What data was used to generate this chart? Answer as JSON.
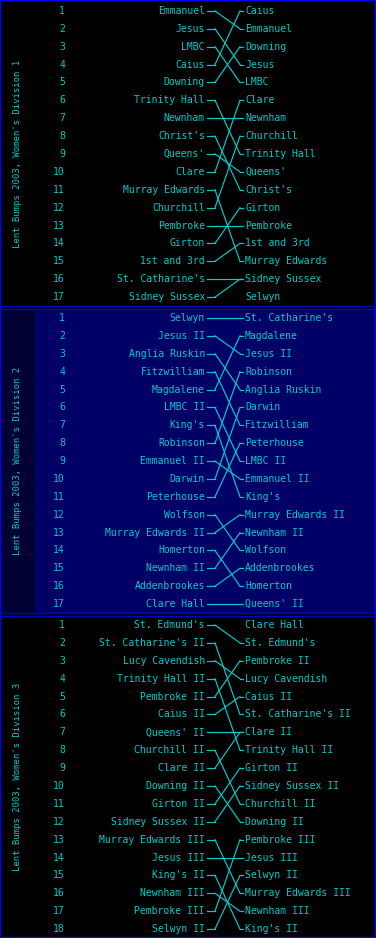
{
  "bg_color": "#000000",
  "line_color": "#00cccc",
  "text_color": "#00cccc",
  "font_size": 7.0,
  "sidebar_text_size": 6.5,
  "div_bgs": [
    "#000000",
    "#000066",
    "#000000"
  ],
  "div_sidebar_bgs": [
    "#000000",
    "#000066",
    "#000000"
  ],
  "divisions": [
    {
      "name": "Women's Division 1",
      "left": [
        "Emmanuel",
        "Jesus",
        "LMBC",
        "Caius",
        "Downing",
        "Trinity Hall",
        "Newnham",
        "Christ's",
        "Queens'",
        "Clare",
        "Murray Edwards",
        "Churchill",
        "Pembroke",
        "Girton",
        "1st and 3rd",
        "St. Catharine's",
        "Sidney Sussex"
      ],
      "right": [
        "Caius",
        "Emmanuel",
        "Downing",
        "Jesus",
        "LMBC",
        "Clare",
        "Newnham",
        "Churchill",
        "Trinity Hall",
        "Queens'",
        "Christ's",
        "Girton",
        "Pembroke",
        "1st and 3rd",
        "Murray Edwards",
        "Sidney Sussex",
        "Selwyn"
      ]
    },
    {
      "name": "Women's Division 2",
      "left": [
        "Selwyn",
        "Jesus II",
        "Anglia Ruskin",
        "Fitzwilliam",
        "Magdalene",
        "LMBC II",
        "King's",
        "Robinson",
        "Emmanuel II",
        "Darwin",
        "Peterhouse",
        "Wolfson",
        "Murray Edwards II",
        "Homerton",
        "Newnham II",
        "Addenbrookes",
        "Clare Hall"
      ],
      "right": [
        "St. Catharine's",
        "Magdalene",
        "Jesus II",
        "Robinson",
        "Anglia Ruskin",
        "Darwin",
        "Fitzwilliam",
        "Peterhouse",
        "LMBC II",
        "Emmanuel II",
        "King's",
        "Murray Edwards II",
        "Newnham II",
        "Wolfson",
        "Addenbrookes",
        "Homerton",
        "Queens' II"
      ]
    },
    {
      "name": "Women's Division 3",
      "left": [
        "St. Edmund's",
        "St. Catharine's II",
        "Lucy Cavendish",
        "Trinity Hall II",
        "Pembroke II",
        "Caius II",
        "Queens' II",
        "Churchill II",
        "Clare II",
        "Downing II",
        "Girton II",
        "Sidney Sussex II",
        "Murray Edwards III",
        "Jesus III",
        "King's II",
        "Newnham III",
        "Pembroke III",
        "Selwyn II"
      ],
      "right": [
        "Clare Hall",
        "St. Edmund's",
        "Pembroke II",
        "Lucy Cavendish",
        "Caius II",
        "St. Catharine's II",
        "Clare II",
        "Trinity Hall II",
        "Girton II",
        "Sidney Sussex II",
        "Churchill II",
        "Downing II",
        "Pembroke III",
        "Jesus III",
        "Selwyn II",
        "Murray Edwards III",
        "Newnham III",
        "King's II"
      ]
    }
  ]
}
